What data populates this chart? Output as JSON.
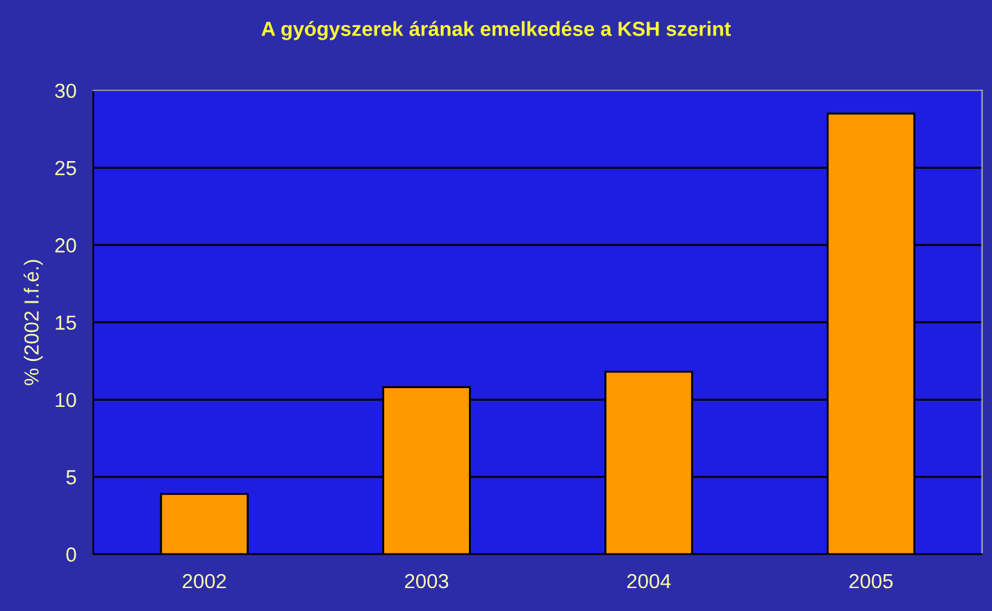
{
  "chart_data": {
    "type": "bar",
    "title": "A gyógyszerek árának emelkedése a KSH szerint",
    "ylabel": "% (2002 I.f.é.)",
    "categories": [
      "2002",
      "2003",
      "2004",
      "2005"
    ],
    "values": [
      3.9,
      10.8,
      11.8,
      28.5
    ],
    "color": "#ff9900",
    "ylim": [
      0,
      30
    ],
    "yticks": [
      0,
      5,
      10,
      15,
      20,
      25,
      30
    ],
    "grid": "y"
  }
}
